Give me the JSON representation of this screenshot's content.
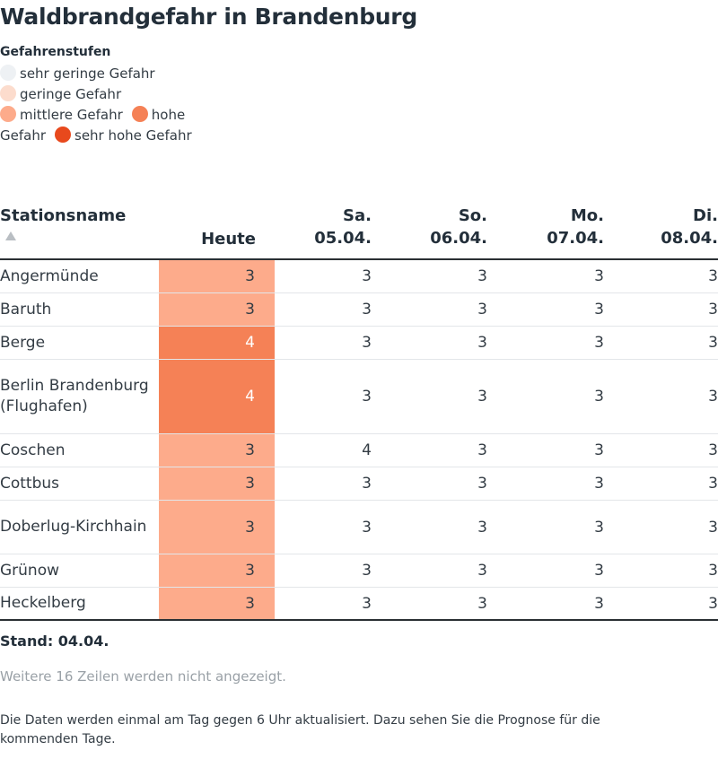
{
  "title": "Waldbrandgefahr in Brandenburg",
  "legend": {
    "title": "Gefahrenstufen",
    "items": [
      {
        "label": "sehr geringe Gefahr",
        "color": "#eef1f4"
      },
      {
        "label": "geringe Gefahr",
        "color": "#fcdccd"
      },
      {
        "label": "mittlere Gefahr",
        "color": "#fdab8b"
      },
      {
        "label": "hohe Gefahr",
        "color": "#f58156"
      },
      {
        "label": "sehr hohe Gefahr",
        "color": "#e8491d"
      }
    ]
  },
  "table": {
    "columns": {
      "station": "Stationsname",
      "today": "Heute",
      "days": [
        {
          "weekday": "Sa.",
          "date": "05.04."
        },
        {
          "weekday": "So.",
          "date": "06.04."
        },
        {
          "weekday": "Mo.",
          "date": "07.04."
        },
        {
          "weekday": "Di.",
          "date": "08.04."
        }
      ]
    },
    "rows": [
      {
        "station": "Angermünde",
        "today": "3",
        "days": [
          "3",
          "3",
          "3",
          "3"
        ]
      },
      {
        "station": "Baruth",
        "today": "3",
        "days": [
          "3",
          "3",
          "3",
          "3"
        ]
      },
      {
        "station": "Berge",
        "today": "4",
        "days": [
          "3",
          "3",
          "3",
          "3"
        ]
      },
      {
        "station": "Berlin Brandenburg (Flughafen)",
        "today": "4",
        "days": [
          "3",
          "3",
          "3",
          "3"
        ]
      },
      {
        "station": "Coschen",
        "today": "3",
        "days": [
          "4",
          "3",
          "3",
          "3"
        ]
      },
      {
        "station": "Cottbus",
        "today": "3",
        "days": [
          "3",
          "3",
          "3",
          "3"
        ]
      },
      {
        "station": "Doberlug-Kirchhain",
        "today": "3",
        "days": [
          "3",
          "3",
          "3",
          "3"
        ]
      },
      {
        "station": "Grünow",
        "today": "3",
        "days": [
          "3",
          "3",
          "3",
          "3"
        ]
      },
      {
        "station": "Heckelberg",
        "today": "3",
        "days": [
          "3",
          "3",
          "3",
          "3"
        ]
      }
    ]
  },
  "stand": "Stand: 04.04.",
  "more_rows": "Weitere 16 Zeilen werden nicht angezeigt.",
  "note": "Die Daten werden einmal am Tag gegen 6 Uhr aktualisiert. Dazu sehen Sie die Prognose für die kommenden Tage."
}
